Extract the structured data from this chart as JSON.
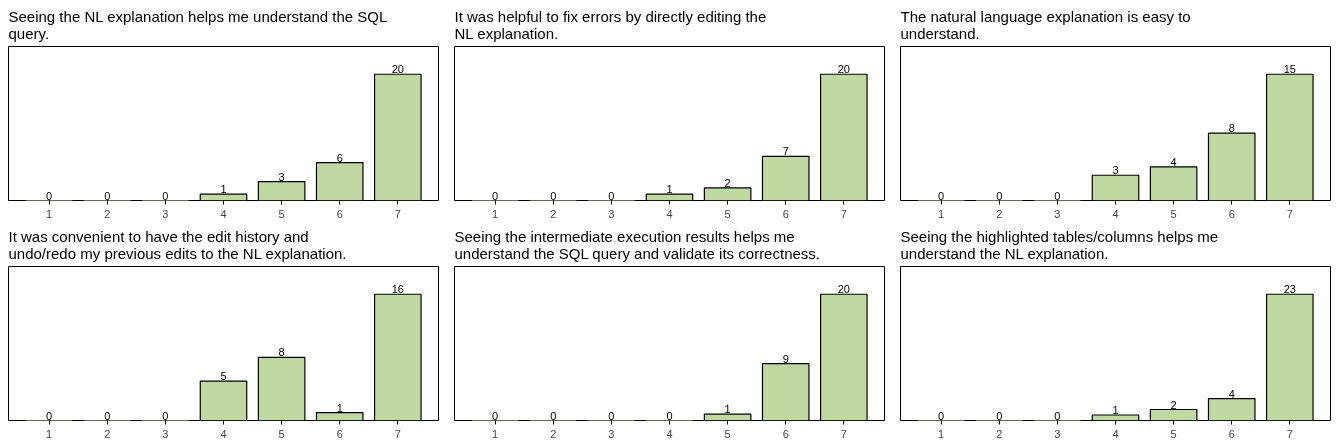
{
  "chart_data": [
    {
      "type": "bar",
      "title": "Seeing the NL explanation helps me understand the SQL query.",
      "categories": [
        "1",
        "2",
        "3",
        "4",
        "5",
        "6",
        "7"
      ],
      "values": [
        0,
        0,
        0,
        1,
        3,
        6,
        20
      ],
      "color": "#c0d9a3",
      "data_labels": true
    },
    {
      "type": "bar",
      "title": "It was helpful to fix errors by directly editing the NL explanation.",
      "categories": [
        "1",
        "2",
        "3",
        "4",
        "5",
        "6",
        "7"
      ],
      "values": [
        0,
        0,
        0,
        1,
        2,
        7,
        20
      ],
      "color": "#c0d9a3",
      "data_labels": true
    },
    {
      "type": "bar",
      "title": "The natural language explanation is easy to understand.",
      "categories": [
        "1",
        "2",
        "3",
        "4",
        "5",
        "6",
        "7"
      ],
      "values": [
        0,
        0,
        0,
        3,
        4,
        8,
        15
      ],
      "color": "#c0d9a3",
      "data_labels": true
    },
    {
      "type": "bar",
      "title": "It was convenient to have the edit history and undo/redo my previous edits to the NL explanation.",
      "categories": [
        "1",
        "2",
        "3",
        "4",
        "5",
        "6",
        "7"
      ],
      "values": [
        0,
        0,
        0,
        5,
        8,
        1,
        16
      ],
      "color": "#c0d9a3",
      "data_labels": true
    },
    {
      "type": "bar",
      "title": "Seeing the intermediate execution results helps me understand the SQL query and validate its correctness.",
      "categories": [
        "1",
        "2",
        "3",
        "4",
        "5",
        "6",
        "7"
      ],
      "values": [
        0,
        0,
        0,
        0,
        1,
        9,
        20
      ],
      "color": "#c0d9a3",
      "data_labels": true
    },
    {
      "type": "bar",
      "title": "Seeing the highlighted tables/columns helps me understand the NL explanation.",
      "categories": [
        "1",
        "2",
        "3",
        "4",
        "5",
        "6",
        "7"
      ],
      "values": [
        0,
        0,
        0,
        1,
        2,
        4,
        23
      ],
      "color": "#c0d9a3",
      "data_labels": true
    }
  ]
}
